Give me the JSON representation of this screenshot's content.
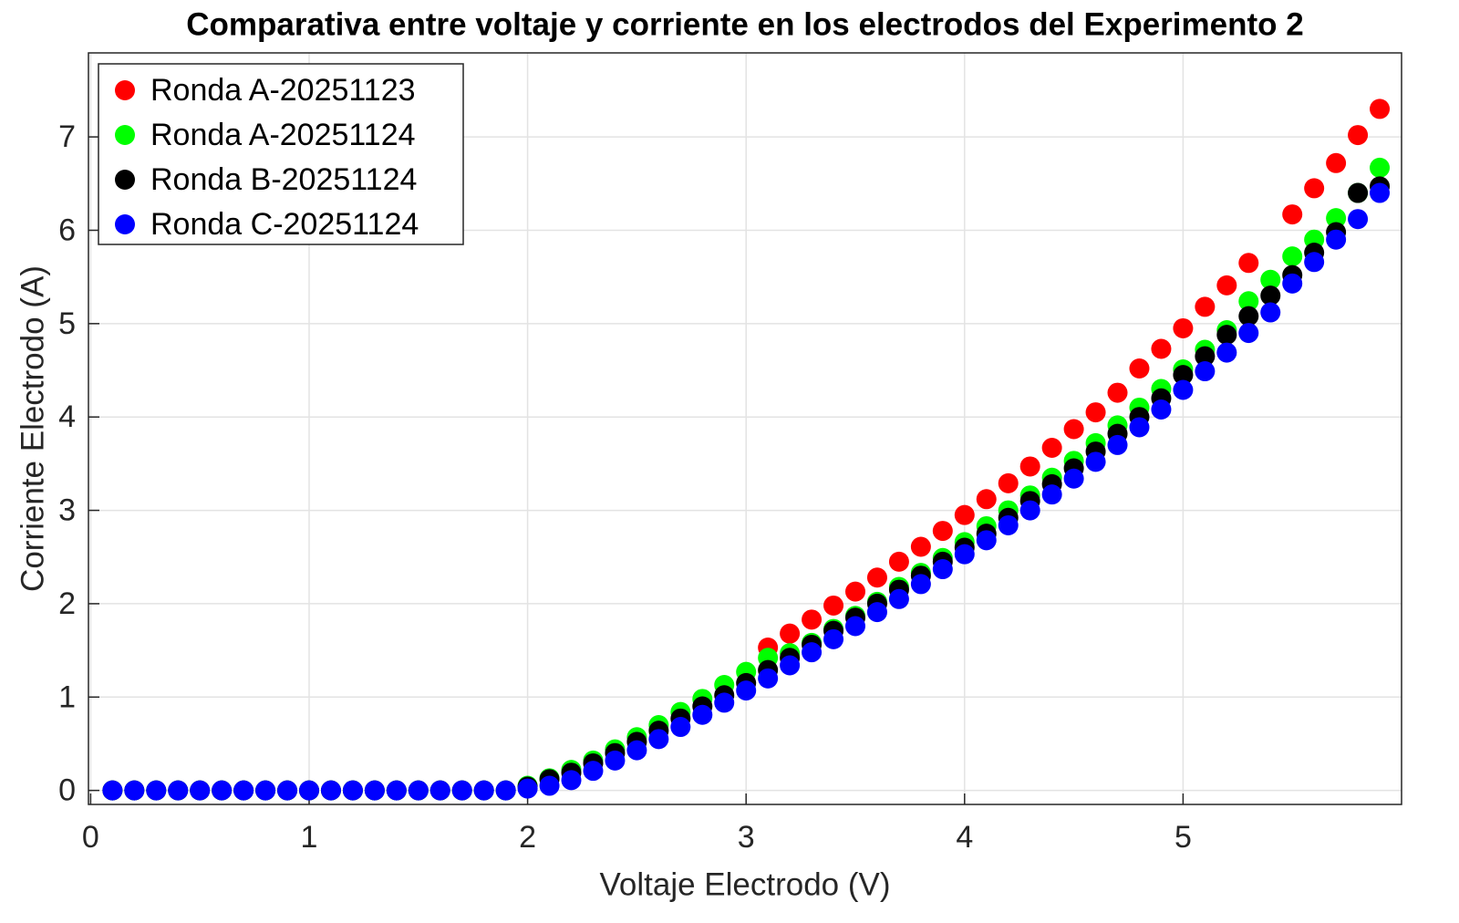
{
  "chart_data": {
    "type": "scatter",
    "title": "Comparativa entre voltaje y corriente en los electrodos del Experimento 2",
    "xlabel": "Voltaje Electrodo (V)",
    "ylabel": "Corriente Electrodo (A)",
    "x": [
      0.1,
      0.2,
      0.3,
      0.4,
      0.5,
      0.6,
      0.7,
      0.8,
      0.9,
      1.0,
      1.1,
      1.2,
      1.3,
      1.4,
      1.5,
      1.6,
      1.7,
      1.8,
      1.9,
      2.0,
      2.1,
      2.2,
      2.3,
      2.4,
      2.5,
      2.6,
      2.7,
      2.8,
      2.9,
      3.0,
      3.1,
      3.2,
      3.3,
      3.4,
      3.5,
      3.6,
      3.7,
      3.8,
      3.9,
      4.0,
      4.1,
      4.2,
      4.3,
      4.4,
      4.5,
      4.6,
      4.7,
      4.8,
      4.9,
      5.0,
      5.1,
      5.2,
      5.3,
      5.4,
      5.5,
      5.6,
      5.7,
      5.8,
      5.9
    ],
    "series": [
      {
        "name": "Ronda A-20251123",
        "color": "#ff0000",
        "values": [
          null,
          null,
          null,
          null,
          null,
          null,
          null,
          null,
          null,
          null,
          null,
          null,
          null,
          null,
          null,
          null,
          null,
          null,
          null,
          null,
          null,
          null,
          null,
          null,
          null,
          null,
          null,
          null,
          null,
          null,
          1.53,
          1.68,
          1.83,
          1.98,
          2.13,
          2.28,
          2.45,
          2.61,
          2.78,
          2.95,
          3.12,
          3.29,
          3.47,
          3.67,
          3.87,
          4.05,
          4.26,
          4.52,
          4.73,
          4.95,
          5.18,
          5.41,
          5.65,
          null,
          6.17,
          6.45,
          6.72,
          7.02,
          7.3
        ]
      },
      {
        "name": "Ronda A-20251124",
        "color": "#00ff00",
        "values": [
          0,
          0,
          0,
          0,
          0,
          0,
          0,
          0,
          0,
          0,
          0,
          0,
          0,
          0,
          0,
          0,
          0,
          0,
          0,
          0.05,
          0.13,
          0.22,
          0.32,
          0.44,
          0.57,
          0.7,
          0.84,
          0.98,
          1.13,
          1.27,
          1.42,
          1.47,
          1.58,
          1.73,
          1.87,
          2.02,
          2.18,
          2.33,
          2.49,
          2.66,
          2.83,
          3.0,
          3.16,
          3.35,
          3.53,
          3.72,
          3.91,
          4.1,
          4.3,
          4.51,
          4.72,
          4.93,
          5.24,
          5.47,
          5.72,
          5.9,
          6.13,
          6.4,
          6.67
        ]
      },
      {
        "name": "Ronda B-20251124",
        "color": "#000000",
        "values": [
          0,
          0,
          0,
          0,
          0,
          0,
          0,
          0,
          0,
          0,
          0,
          0,
          0,
          0,
          0,
          0,
          0,
          0,
          0,
          0.04,
          0.12,
          0.19,
          0.29,
          0.4,
          0.52,
          0.64,
          0.77,
          0.9,
          1.02,
          1.15,
          1.29,
          1.42,
          1.56,
          1.71,
          1.85,
          2.0,
          2.15,
          2.3,
          2.45,
          2.6,
          2.75,
          2.92,
          3.1,
          3.28,
          3.45,
          3.63,
          3.82,
          4.0,
          4.2,
          4.45,
          4.65,
          4.88,
          5.08,
          5.3,
          5.52,
          5.76,
          5.98,
          6.4,
          6.47
        ]
      },
      {
        "name": "Ronda C-20251124",
        "color": "#0000ff",
        "values": [
          0,
          0,
          0,
          0,
          0,
          0,
          0,
          0,
          0,
          0,
          0,
          0,
          0,
          0,
          0,
          0,
          0,
          0,
          0,
          0.02,
          0.05,
          0.11,
          0.21,
          0.32,
          0.43,
          0.55,
          0.68,
          0.81,
          0.94,
          1.07,
          1.2,
          1.34,
          1.48,
          1.62,
          1.76,
          1.91,
          2.05,
          2.21,
          2.37,
          2.53,
          2.68,
          2.84,
          3.0,
          3.17,
          3.34,
          3.52,
          3.7,
          3.89,
          4.08,
          4.29,
          4.49,
          4.69,
          4.9,
          5.12,
          5.43,
          5.66,
          5.9,
          6.12,
          6.4
        ]
      }
    ],
    "xlim": [
      -0.01,
      6.0
    ],
    "xticks": [
      0,
      1,
      2,
      3,
      4,
      5
    ],
    "ylim": [
      -0.15,
      7.9
    ],
    "yticks": [
      0,
      1,
      2,
      3,
      4,
      5,
      6,
      7
    ],
    "grid": true,
    "legend": "top-left"
  }
}
